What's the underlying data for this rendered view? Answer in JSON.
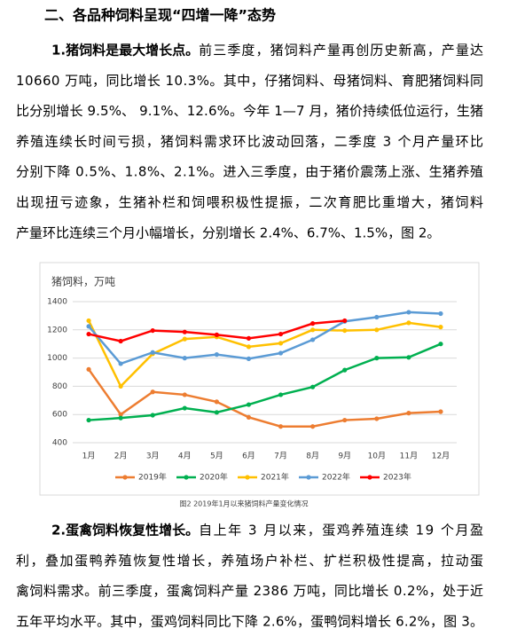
{
  "heading": "二、各品种饲料呈现“四增一降”态势",
  "paragraphs": [
    {
      "lead": "1.猪饲料是最大增长点。",
      "lines": [
        "前三季度，猪饲料产量再创历史新高，产量达",
        "10660 万吨，同比增长 10.3%。其中，仔猪饲料、母猪饲料、育肥猪饲料同",
        "比分别增长 9.5%、 9.1%、12.6%。今年 1—7 月，猪价持续低位运行，生猪",
        "养殖连续长时间亏损，猪饲料需求环比波动回落，二季度 3 个月产量环比",
        "分别下降 0.5%、1.8%、2.1%。进入三季度，由于猪价震荡上涨、生猪养殖",
        "出现扭亏迹象，生猪补栏和饲喂积极性提振，二次育肥比重增大，猪饲料",
        "产量环比连续三个月小幅增长，分别增长 2.4%、6.7%、1.5%，图 2。"
      ]
    },
    {
      "lead": "2.蛋禽饲料恢复性增长。",
      "lines": [
        "自上年 3 月以来，蛋鸡养殖连续 19 个月盈",
        "利，叠加蛋鸭养殖恢复性增长，养殖场户补栏、扩栏积极性提高，拉动蛋",
        "禽饲料需求。前三季度，蛋禽饲料产量 2386 万吨，同比增长 0.2%，处于近",
        "五年平均水平。其中，蛋鸡饲料同比下降 2.6%，蛋鸭饲料增长 6.2%，图 3。"
      ]
    }
  ],
  "caption": "图2 2019年1月以来猪饲料产量变化情况",
  "chart_data": {
    "type": "line",
    "unit_label": "猪饲料，万吨",
    "categories": [
      "1月",
      "2月",
      "3月",
      "4月",
      "5月",
      "6月",
      "7月",
      "8月",
      "9月",
      "10月",
      "11月",
      "12月"
    ],
    "ylim": [
      400,
      1400
    ],
    "yticks": [
      400,
      600,
      800,
      1000,
      1200,
      1400
    ],
    "grid": true,
    "legend": "bottom",
    "series": [
      {
        "name": "2019年",
        "color": "#ED7D31",
        "values": [
          920,
          600,
          760,
          740,
          690,
          580,
          515,
          515,
          560,
          570,
          610,
          620
        ]
      },
      {
        "name": "2020年",
        "color": "#00B050",
        "values": [
          560,
          575,
          595,
          645,
          615,
          670,
          740,
          795,
          915,
          1000,
          1005,
          1100
        ]
      },
      {
        "name": "2021年",
        "color": "#FFC000",
        "values": [
          1265,
          800,
          1030,
          1135,
          1150,
          1080,
          1105,
          1200,
          1195,
          1200,
          1250,
          1220
        ]
      },
      {
        "name": "2022年",
        "color": "#5B9BD5",
        "values": [
          1225,
          960,
          1040,
          1000,
          1025,
          995,
          1035,
          1130,
          1260,
          1290,
          1325,
          1315
        ]
      },
      {
        "name": "2023年",
        "color": "#FF0000",
        "values": [
          1170,
          1120,
          1195,
          1185,
          1165,
          1140,
          1170,
          1245,
          1265,
          null,
          null,
          null
        ]
      }
    ]
  }
}
